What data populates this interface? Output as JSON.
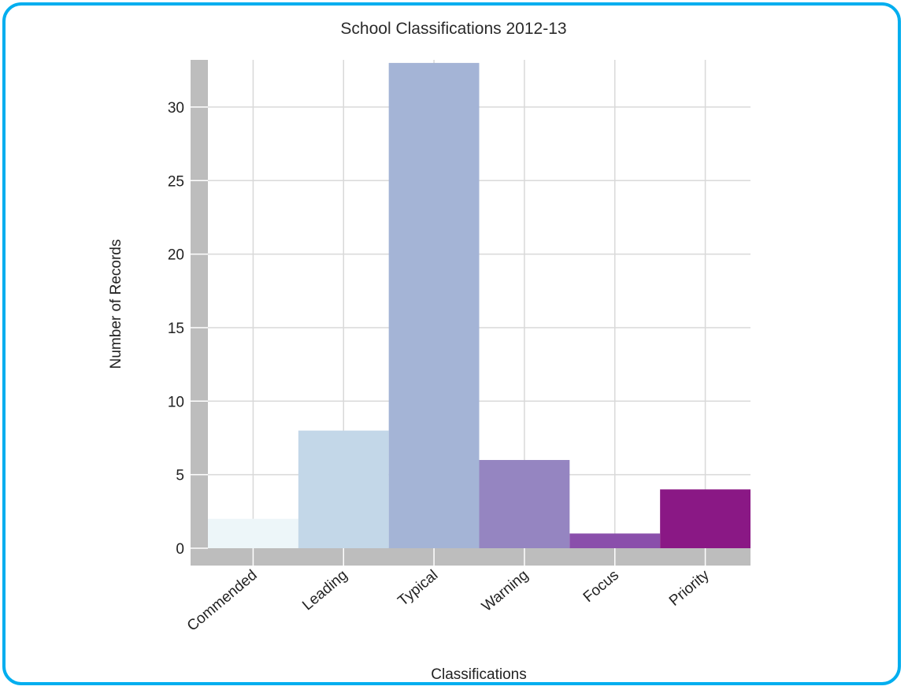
{
  "chart_data": {
    "type": "bar",
    "title": "School Classifications 2012-13",
    "xlabel": "Classifications",
    "ylabel": "Number of Records",
    "categories": [
      "Commended",
      "Leading",
      "Typical",
      "Warning",
      "Focus",
      "Priority"
    ],
    "values": [
      2,
      8,
      33,
      6,
      1,
      4
    ],
    "colors": [
      "#edf6f9",
      "#c3d7e8",
      "#a4b4d6",
      "#9585c1",
      "#8a4fab",
      "#8a1885"
    ],
    "yticks": [
      0,
      5,
      10,
      15,
      20,
      25,
      30
    ],
    "ylim": [
      0,
      33
    ],
    "grid": true,
    "legend": "none"
  }
}
